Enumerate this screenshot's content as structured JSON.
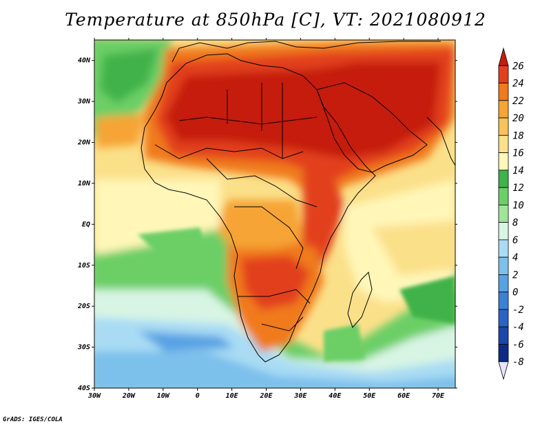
{
  "title": "Temperature at 850hPa [C], VT: 2021080912",
  "credit": "GrADS: IGES/COLA",
  "map": {
    "lon_range": [
      -30,
      75
    ],
    "lat_range": [
      -40,
      45
    ],
    "lon_ticks": [
      "30W",
      "20W",
      "10W",
      "0",
      "10E",
      "20E",
      "30E",
      "40E",
      "50E",
      "60E",
      "70E"
    ],
    "lat_ticks": [
      "40N",
      "30N",
      "20N",
      "10N",
      "EQ",
      "10S",
      "20S",
      "30S",
      "40S"
    ],
    "field": "850hPa temperature",
    "units": "C"
  },
  "colorbar": {
    "labels": [
      "26",
      "24",
      "22",
      "20",
      "18",
      "16",
      "14",
      "12",
      "10",
      "8",
      "6",
      "4",
      "2",
      "0",
      "-2",
      "-4",
      "-6",
      "-8"
    ],
    "colors": [
      "#c51b0a",
      "#e2401c",
      "#f07a1c",
      "#f6a434",
      "#f7c35a",
      "#fbe08a",
      "#fff6b8",
      "#3fb24a",
      "#6ccf66",
      "#9fe49a",
      "#d8f5e4",
      "#a9dcf4",
      "#7cc0ec",
      "#56a2e3",
      "#3a82d6",
      "#2a63c4",
      "#1b47aa",
      "#0e2a86",
      "#0a1466"
    ]
  }
}
